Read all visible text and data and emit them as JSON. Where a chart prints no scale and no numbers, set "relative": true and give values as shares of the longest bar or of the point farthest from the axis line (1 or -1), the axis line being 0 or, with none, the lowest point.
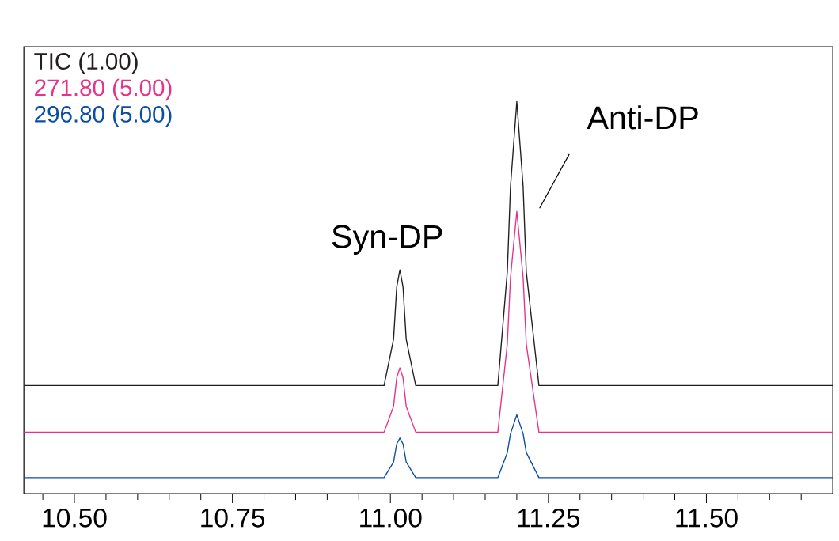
{
  "chart_data": {
    "type": "line",
    "relative": true,
    "legend": "top left",
    "x": [
      10.42,
      10.6,
      10.8,
      10.99,
      11.005,
      11.01,
      11.015,
      11.02,
      11.025,
      11.04,
      11.17,
      11.185,
      11.19,
      11.2,
      11.21,
      11.215,
      11.235,
      11.3,
      11.5,
      11.7
    ],
    "series": [
      {
        "name": "TIC (1.00)",
        "color": "#231f20",
        "values": [
          0.276,
          0.276,
          0.276,
          0.276,
          0.394,
          0.527,
          0.571,
          0.527,
          0.394,
          0.276,
          0.276,
          0.566,
          0.783,
          1.0,
          0.783,
          0.566,
          0.276,
          0.276,
          0.276,
          0.276
        ]
      },
      {
        "name": "271.80 (5.00)",
        "color": "#e8318a",
        "values": [
          0.157,
          0.157,
          0.157,
          0.157,
          0.223,
          0.296,
          0.321,
          0.296,
          0.223,
          0.157,
          0.157,
          0.382,
          0.551,
          0.72,
          0.551,
          0.382,
          0.157,
          0.157,
          0.157,
          0.157
        ]
      },
      {
        "name": "296.80 (5.00)",
        "color": "#0a4ea2",
        "values": [
          0.041,
          0.041,
          0.041,
          0.041,
          0.081,
          0.127,
          0.142,
          0.127,
          0.081,
          0.041,
          0.041,
          0.105,
          0.153,
          0.201,
          0.153,
          0.105,
          0.041,
          0.041,
          0.041,
          0.041
        ]
      }
    ],
    "xlim": [
      10.42,
      11.7
    ],
    "xticks": [
      {
        "value": 10.45,
        "label": null
      },
      {
        "value": 10.5,
        "label": "10.50"
      },
      {
        "value": 10.55,
        "label": null
      },
      {
        "value": 10.6,
        "label": null
      },
      {
        "value": 10.65,
        "label": null
      },
      {
        "value": 10.7,
        "label": null
      },
      {
        "value": 10.75,
        "label": "10.75"
      },
      {
        "value": 10.8,
        "label": null
      },
      {
        "value": 10.85,
        "label": null
      },
      {
        "value": 10.9,
        "label": null
      },
      {
        "value": 10.95,
        "label": null
      },
      {
        "value": 11.0,
        "label": "11.00"
      },
      {
        "value": 11.05,
        "label": null
      },
      {
        "value": 11.1,
        "label": null
      },
      {
        "value": 11.15,
        "label": null
      },
      {
        "value": 11.2,
        "label": null
      },
      {
        "value": 11.25,
        "label": "11.25"
      },
      {
        "value": 11.3,
        "label": null
      },
      {
        "value": 11.35,
        "label": null
      },
      {
        "value": 11.4,
        "label": null
      },
      {
        "value": 11.45,
        "label": null
      },
      {
        "value": 11.5,
        "label": "11.50"
      },
      {
        "value": 11.55,
        "label": null
      },
      {
        "value": 11.6,
        "label": null
      },
      {
        "value": 11.65,
        "label": null
      }
    ],
    "annotations": [
      {
        "text": "Syn-DP",
        "x": 11.015,
        "y": 0.571
      },
      {
        "text": "Anti-DP",
        "x": 11.2,
        "y": 1.0
      }
    ]
  }
}
